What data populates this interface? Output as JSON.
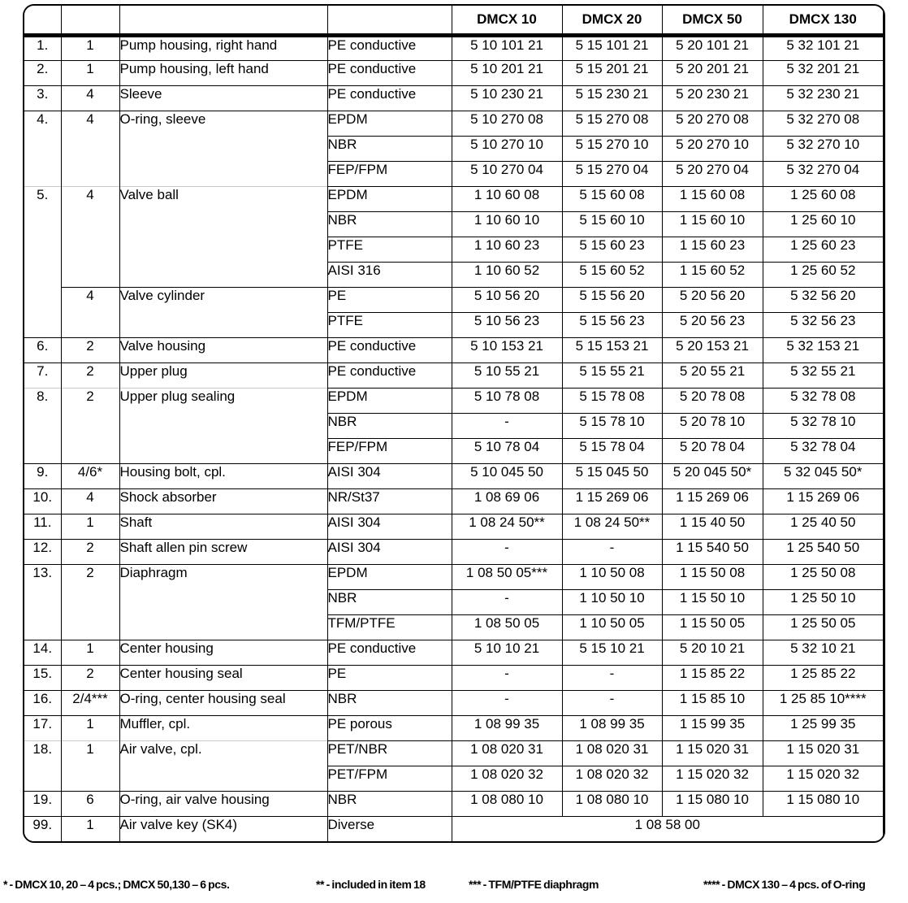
{
  "table": {
    "model_columns": [
      "DMCX 10",
      "DMCX 20",
      "DMCX 50",
      "DMCX 130"
    ],
    "rows": [
      {
        "item": "1.",
        "qty": "1",
        "desc": "Pump housing, right hand",
        "material": "PE conductive",
        "parts": [
          "5 10 101 21",
          "5 15 101 21",
          "5 20 101 21",
          "5 32 101 21"
        ]
      },
      {
        "item": "2.",
        "qty": "1",
        "desc": "Pump housing, left hand",
        "material": "PE conductive",
        "parts": [
          "5 10 201 21",
          "5 15 201 21",
          "5 20 201 21",
          "5 32 201 21"
        ]
      },
      {
        "item": "3.",
        "qty": "4",
        "desc": "Sleeve",
        "material": "PE conductive",
        "parts": [
          "5 10 230 21",
          "5 15 230 21",
          "5 20 230 21",
          "5 32 230 21"
        ]
      },
      {
        "item": "4.",
        "itemSpan": 3,
        "qty": "4",
        "qtySpan": 3,
        "desc": "O-ring, sleeve",
        "descSpan": 3,
        "material": "EPDM",
        "parts": [
          "5 10 270 08",
          "5 15 270 08",
          "5 20 270 08",
          "5 32 270 08"
        ]
      },
      {
        "material": "NBR",
        "parts": [
          "5 10 270 10",
          "5 15 270 10",
          "5 20 270 10",
          "5 32 270 10"
        ]
      },
      {
        "material": "FEP/FPM",
        "parts": [
          "5 10 270 04",
          "5 15 270 04",
          "5 20 270 04",
          "5 32 270 04"
        ]
      },
      {
        "item": "5.",
        "itemSpan": 6,
        "qty": "4",
        "qtySpan": 4,
        "desc": "Valve ball",
        "descSpan": 4,
        "sep": "faint",
        "material": "EPDM",
        "parts": [
          "1 10 60 08",
          "5 15 60 08",
          "1 15 60 08",
          "1 25 60 08"
        ]
      },
      {
        "material": "NBR",
        "parts": [
          "1 10 60 10",
          "5 15 60 10",
          "1 15 60 10",
          "1 25 60 10"
        ]
      },
      {
        "material": "PTFE",
        "parts": [
          "1 10 60 23",
          "5 15 60 23",
          "1 15 60 23",
          "1 25 60 23"
        ]
      },
      {
        "material": "AISI 316",
        "parts": [
          "1 10 60 52",
          "5 15 60 52",
          "1 15 60 52",
          "1 25 60 52"
        ]
      },
      {
        "qty": "4",
        "qtySpan": 2,
        "desc": "Valve cylinder",
        "descSpan": 2,
        "material": "PE",
        "parts": [
          "5 10 56 20",
          "5 15 56 20",
          "5 20 56 20",
          "5 32 56 20"
        ]
      },
      {
        "material": "PTFE",
        "parts": [
          "5 10 56 23",
          "5 15 56 23",
          "5 20 56 23",
          "5 32 56 23"
        ]
      },
      {
        "item": "6.",
        "qty": "2",
        "desc": "Valve housing",
        "material": "PE conductive",
        "parts": [
          "5 10 153 21",
          "5 15 153 21",
          "5 20 153 21",
          "5 32 153 21"
        ]
      },
      {
        "item": "7.",
        "qty": "2",
        "desc": "Upper plug",
        "material": "PE conductive",
        "parts": [
          "5 10 55 21",
          "5 15 55 21",
          "5 20 55 21",
          "5 32 55 21"
        ]
      },
      {
        "item": "8.",
        "itemSpan": 3,
        "qty": "2",
        "qtySpan": 3,
        "desc": "Upper plug sealing",
        "descSpan": 3,
        "sep": "faint",
        "material": "EPDM",
        "parts": [
          "5 10 78 08",
          "5 15 78 08",
          "5 20 78 08",
          "5 32 78 08"
        ]
      },
      {
        "material": "NBR",
        "parts": [
          "-",
          "5 15 78 10",
          "5 20 78 10",
          "5 32 78 10"
        ]
      },
      {
        "material": "FEP/FPM",
        "parts": [
          "5 10 78 04",
          "5 15 78 04",
          "5 20 78 04",
          "5 32 78 04"
        ]
      },
      {
        "item": "9.",
        "qty": "4/6*",
        "desc": "Housing bolt, cpl.",
        "material": "AISI 304",
        "parts": [
          "5 10 045 50",
          "5 15 045 50",
          "5 20 045 50*",
          "5 32 045 50*"
        ]
      },
      {
        "item": "10.",
        "qty": "4",
        "desc": "Shock absorber",
        "material": "NR/St37",
        "parts": [
          "1 08 69 06",
          "1 15 269 06",
          "1 15 269 06",
          "1 15 269 06"
        ]
      },
      {
        "item": "11.",
        "qty": "1",
        "desc": "Shaft",
        "material": "AISI 304",
        "parts": [
          "1 08 24 50**",
          "1 08 24 50**",
          "1 15 40 50",
          "1 25 40 50"
        ]
      },
      {
        "item": "12.",
        "qty": "2",
        "desc": "Shaft allen pin screw",
        "material": "AISI 304",
        "parts": [
          "-",
          "-",
          "1 15 540 50",
          "1 25 540 50"
        ]
      },
      {
        "item": "13.",
        "itemSpan": 3,
        "qty": "2",
        "qtySpan": 3,
        "desc": "Diaphragm",
        "descSpan": 3,
        "material": "EPDM",
        "parts": [
          "1 08 50 05***",
          "1 10 50 08",
          "1 15 50 08",
          "1 25 50 08"
        ]
      },
      {
        "material": "NBR",
        "parts": [
          "-",
          "1 10 50 10",
          "1 15 50 10",
          "1 25 50 10"
        ]
      },
      {
        "material": "TFM/PTFE",
        "parts": [
          "1 08 50 05",
          "1 10 50 05",
          "1 15 50 05",
          "1 25 50 05"
        ]
      },
      {
        "item": "14.",
        "qty": "1",
        "desc": "Center housing",
        "material": "PE conductive",
        "parts": [
          "5 10 10 21",
          "5 15 10 21",
          "5 20 10 21",
          "5 32 10 21"
        ]
      },
      {
        "item": "15.",
        "qty": "2",
        "desc": "Center housing seal",
        "material": "PE",
        "parts": [
          "-",
          "-",
          "1 15 85 22",
          "1 25 85 22"
        ]
      },
      {
        "item": "16.",
        "qty": "2/4***",
        "desc": "O-ring, center housing seal",
        "material": "NBR",
        "parts": [
          "-",
          "-",
          "1 15 85 10",
          "1 25 85 10****"
        ]
      },
      {
        "item": "17.",
        "qty": "1",
        "desc": "Muffler, cpl.",
        "material": "PE porous",
        "parts": [
          "1 08 99 35",
          "1 08 99 35",
          "1 15 99 35",
          "1 25 99 35"
        ]
      },
      {
        "item": "18.",
        "itemSpan": 2,
        "qty": "1",
        "qtySpan": 2,
        "desc": "Air valve, cpl.",
        "descSpan": 2,
        "sep": "faint",
        "material": "PET/NBR",
        "parts": [
          "1 08 020 31",
          "1 08 020 31",
          "1 15 020 31",
          "1 15 020 31"
        ]
      },
      {
        "material": "PET/FPM",
        "parts": [
          "1 08 020 32",
          "1 08 020 32",
          "1 15 020 32",
          "1 15 020 32"
        ]
      },
      {
        "item": "19.",
        "qty": "6",
        "desc": "O-ring, air valve housing",
        "material": "NBR",
        "parts": [
          "1 08 080 10",
          "1 08 080 10",
          "1 15 080 10",
          "1 15 080 10"
        ]
      },
      {
        "item": "99.",
        "qty": "1",
        "desc": "Air valve key (SK4)",
        "material": "Diverse",
        "partsMerged": "1 08 58 00"
      }
    ]
  },
  "footnotes": [
    "* - DMCX 10, 20  –  4 pcs.; DMCX 50,130 – 6 pcs.",
    "** - included in item 18",
    "*** - TFM/PTFE diaphragm",
    "**** - DMCX 130 – 4 pcs. of O-ring"
  ]
}
